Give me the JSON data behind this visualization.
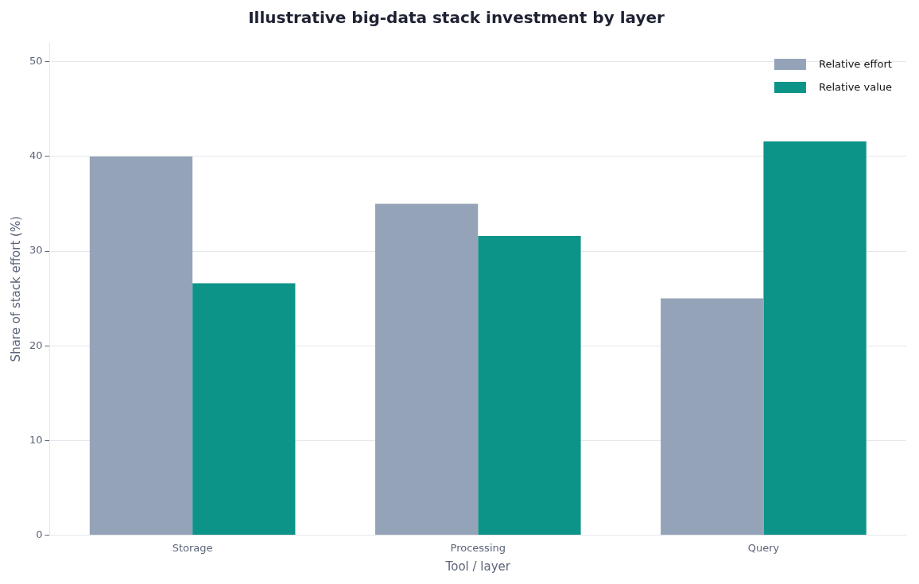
{
  "chart_data": {
    "type": "bar",
    "title": "Illustrative big-data stack investment by layer",
    "xlabel": "Tool / layer",
    "ylabel": "Share of stack effort (%)",
    "categories": [
      "Storage",
      "Processing",
      "Query"
    ],
    "series": [
      {
        "name": "Relative effort",
        "color": "#94a3b8",
        "values": [
          40,
          35,
          25
        ]
      },
      {
        "name": "Relative value",
        "color": "#0d9488",
        "values": [
          26.6,
          31.6,
          41.6
        ]
      }
    ],
    "ylim": [
      0,
      52
    ],
    "yticks": [
      0,
      10,
      20,
      30,
      40,
      50
    ],
    "grid": "y",
    "legend": "top right"
  }
}
